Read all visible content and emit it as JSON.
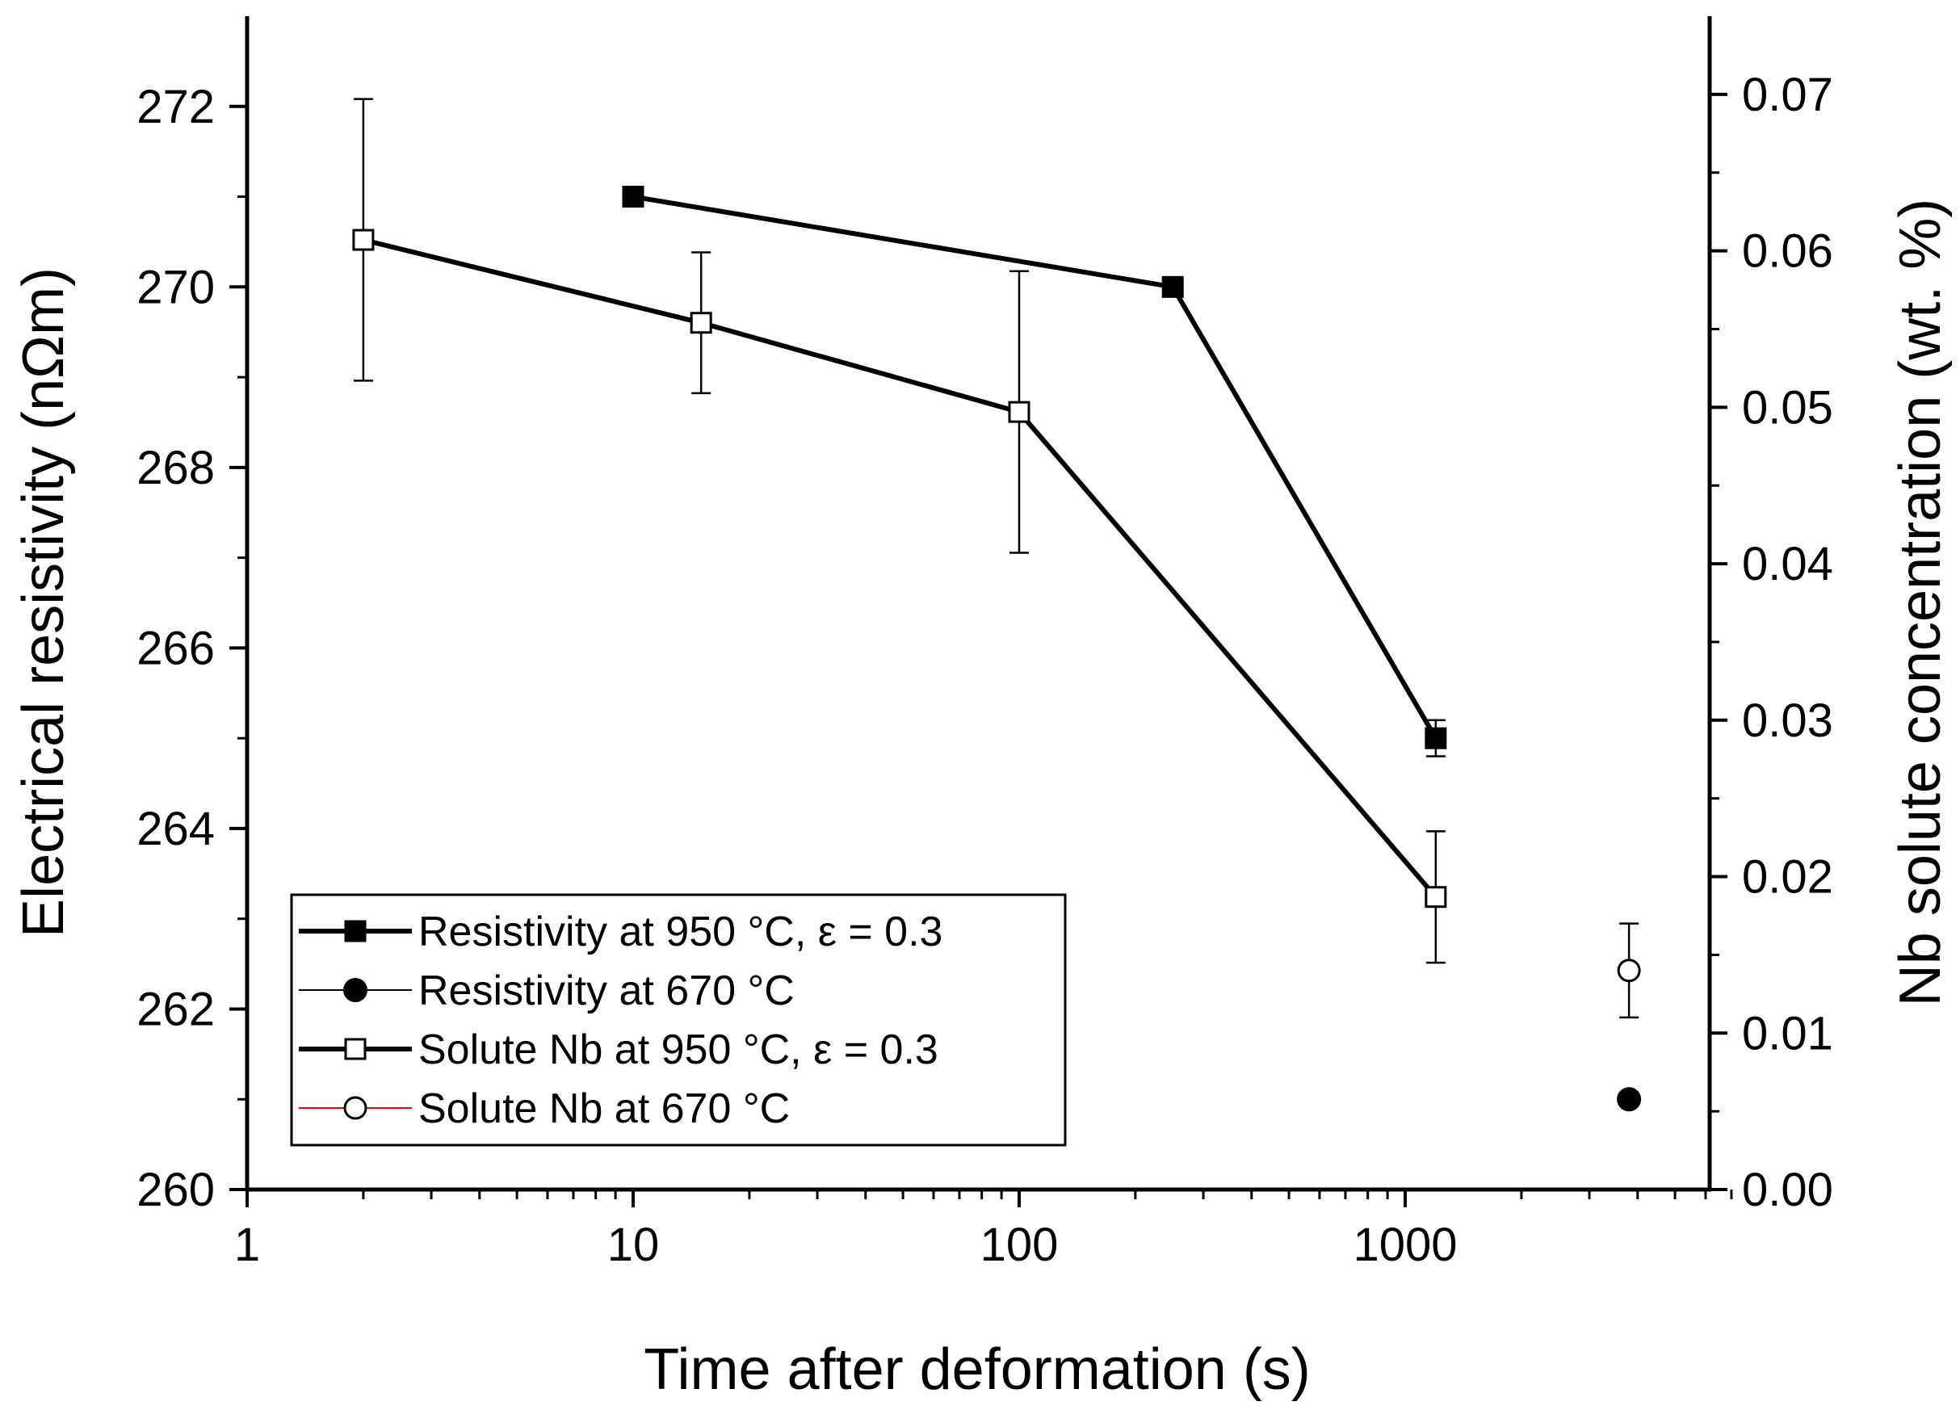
{
  "chart_data": {
    "type": "scatter",
    "xlabel": "Time after deformation (s)",
    "ylabel": "Electrical resistivity (nΩm)",
    "y2label": "Nb solute concentration (wt. %)",
    "xscale": "log",
    "xlim": [
      1,
      7000
    ],
    "ylim": [
      260,
      273
    ],
    "y2lim": [
      0,
      0.075
    ],
    "x_ticks": [
      1,
      10,
      100,
      1000
    ],
    "x_tick_labels": [
      "1",
      "10",
      "100",
      "1000"
    ],
    "y_ticks": [
      260,
      262,
      264,
      266,
      268,
      270,
      272
    ],
    "y_tick_labels": [
      "260",
      "262",
      "264",
      "266",
      "268",
      "270",
      "272"
    ],
    "y2_ticks": [
      0,
      0.01,
      0.02,
      0.03,
      0.04,
      0.05,
      0.06,
      0.07
    ],
    "y2_tick_labels": [
      "0.00",
      "0.01",
      "0.02",
      "0.03",
      "0.04",
      "0.05",
      "0.06",
      "0.07"
    ],
    "legend_position": "bottom-left",
    "series": [
      {
        "name": "Resistivity at 950 °C, ε = 0.3",
        "axis": "left",
        "marker": "filled-square",
        "line": true,
        "line_color": "#000000",
        "x": [
          10,
          250,
          1200
        ],
        "y": [
          271.0,
          270.0,
          265.0
        ],
        "yerr": [
          0,
          0,
          0.2
        ]
      },
      {
        "name": "Resistivity at 670 °C",
        "axis": "left",
        "marker": "filled-circle",
        "line": false,
        "line_color": "#000000",
        "x": [
          3800
        ],
        "y": [
          261.0
        ],
        "yerr": [
          0
        ]
      },
      {
        "name": "Solute Nb at 950 °C, ε = 0.3",
        "axis": "right",
        "marker": "open-square",
        "line": true,
        "line_color": "#000000",
        "x": [
          2,
          15,
          100,
          1200
        ],
        "y": [
          0.0607,
          0.0554,
          0.0497,
          0.0187
        ],
        "yerr": [
          0.009,
          0.0045,
          0.009,
          0.0042
        ]
      },
      {
        "name": "Solute Nb at 670 °C",
        "axis": "right",
        "marker": "open-circle",
        "line": false,
        "line_color": "#ff0000",
        "x": [
          3800
        ],
        "y": [
          0.014
        ],
        "yerr": [
          0.003
        ]
      }
    ]
  }
}
